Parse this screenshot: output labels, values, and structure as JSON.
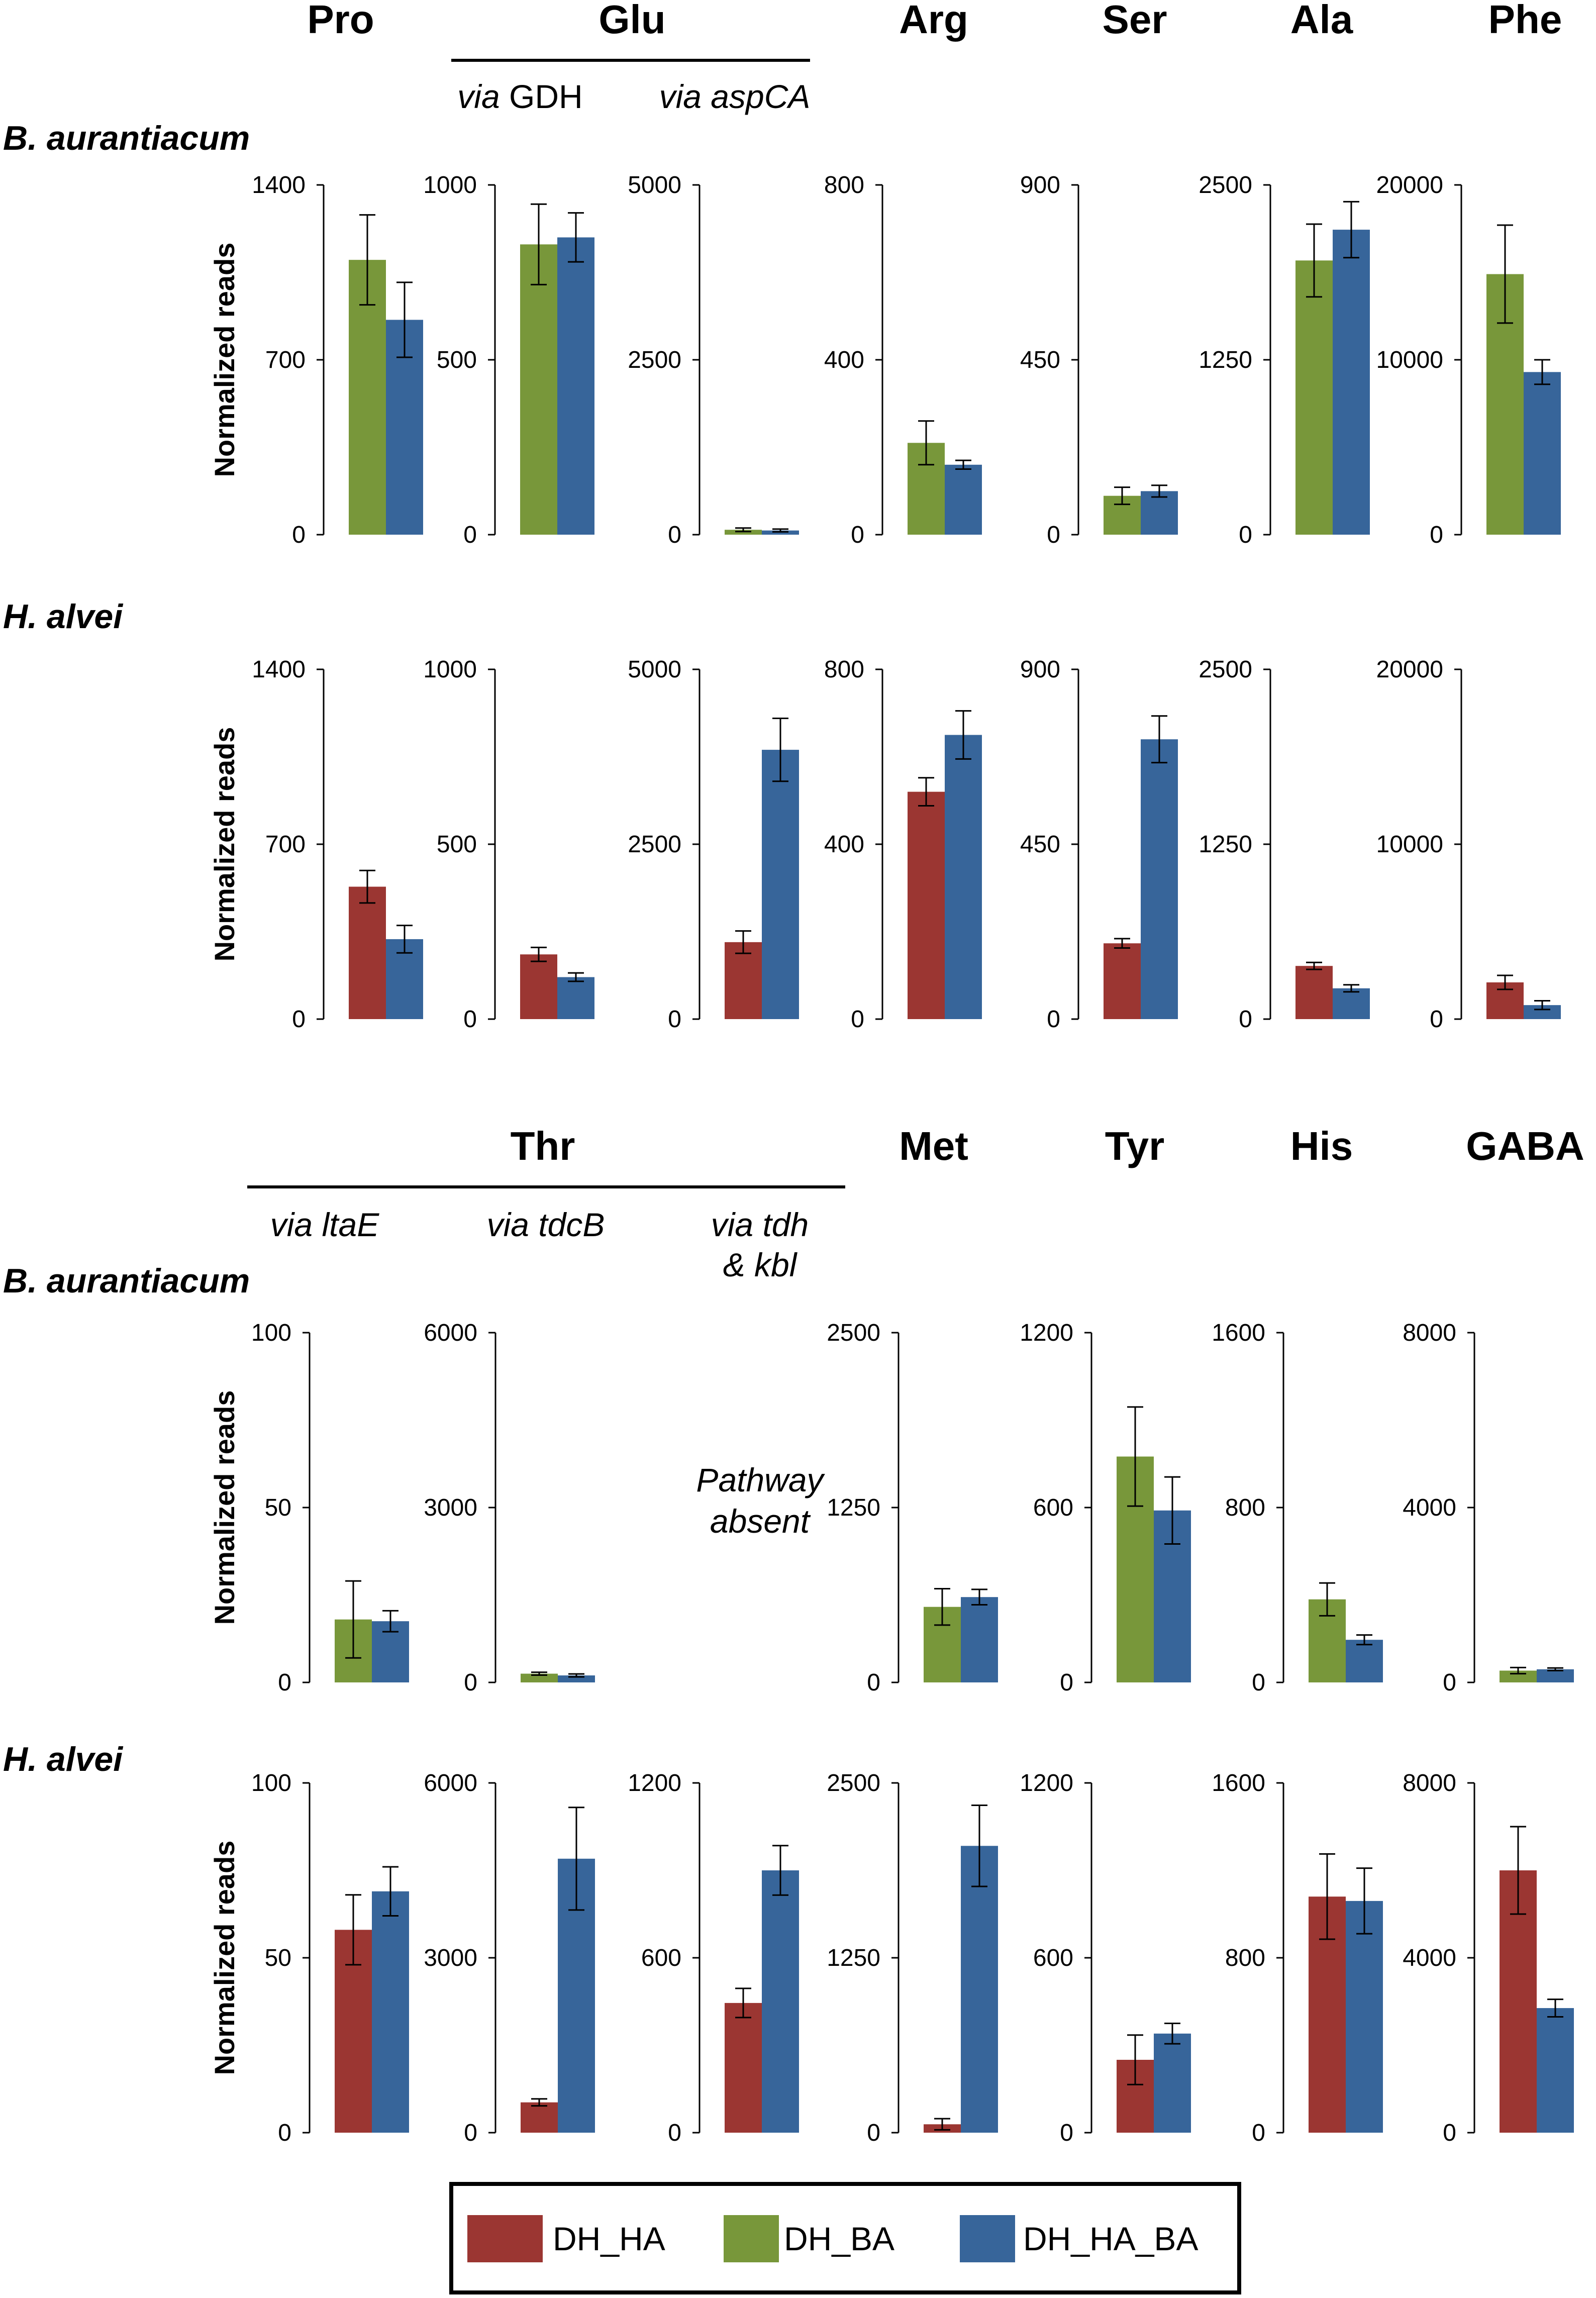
{
  "colors": {
    "DH_HA": "#9b3632",
    "DH_BA": "#78973a",
    "DH_HA_BA": "#37659a"
  },
  "legend": {
    "items": [
      {
        "key": "DH_HA",
        "label": "DH_HA"
      },
      {
        "key": "DH_BA",
        "label": "DH_BA"
      },
      {
        "key": "DH_HA_BA",
        "label": "DH_HA_BA"
      }
    ]
  },
  "top_section": {
    "headers": [
      "Pro",
      "Glu",
      "Arg",
      "Ser",
      "Ala",
      "Phe"
    ],
    "glu_subheaders": [
      {
        "via": "via",
        "gene": "GDH"
      },
      {
        "via": "via",
        "gene": "aspCA"
      }
    ]
  },
  "bottom_section": {
    "headers": [
      "Thr",
      "Met",
      "Tyr",
      "His",
      "GABA"
    ],
    "thr_subheaders": [
      {
        "via": "via",
        "gene": "ltaE"
      },
      {
        "via": "via",
        "gene": "tdcB"
      },
      {
        "via": "via",
        "gene": "tdh",
        "line2": "& kbl"
      }
    ],
    "pathway_absent": [
      "Pathway",
      "absent"
    ]
  },
  "species": [
    "B. aurantiacum",
    "H. alvei"
  ],
  "ylabel": "Normalized reads",
  "chart_data": [
    {
      "type": "bar",
      "title": "Pro",
      "subtitle": "",
      "row": "B. aurantiacum",
      "ylabel": "Normalized reads",
      "ylim": [
        0,
        1400
      ],
      "yticks": [
        "0",
        "700",
        "1400"
      ],
      "series": [
        {
          "name": "DH_BA",
          "values": [
            1100
          ],
          "errors": [
            180
          ]
        },
        {
          "name": "DH_HA_BA",
          "values": [
            860
          ],
          "errors": [
            150
          ]
        }
      ]
    },
    {
      "type": "bar",
      "title": "Glu",
      "subtitle": "via GDH",
      "row": "B. aurantiacum",
      "ylabel": "",
      "ylim": [
        0,
        1000
      ],
      "yticks": [
        "0",
        "500",
        "1000"
      ],
      "series": [
        {
          "name": "DH_BA",
          "values": [
            830
          ],
          "errors": [
            115
          ]
        },
        {
          "name": "DH_HA_BA",
          "values": [
            850
          ],
          "errors": [
            70
          ]
        }
      ]
    },
    {
      "type": "bar",
      "title": "Glu",
      "subtitle": "via aspCA",
      "row": "B. aurantiacum",
      "ylabel": "",
      "ylim": [
        0,
        5000
      ],
      "yticks": [
        "0",
        "2500",
        "5000"
      ],
      "series": [
        {
          "name": "DH_BA",
          "values": [
            70
          ],
          "errors": [
            25
          ]
        },
        {
          "name": "DH_HA_BA",
          "values": [
            60
          ],
          "errors": [
            20
          ]
        }
      ]
    },
    {
      "type": "bar",
      "title": "Arg",
      "subtitle": "",
      "row": "B. aurantiacum",
      "ylabel": "",
      "ylim": [
        0,
        800
      ],
      "yticks": [
        "0",
        "400",
        "800"
      ],
      "series": [
        {
          "name": "DH_BA",
          "values": [
            210
          ],
          "errors": [
            50
          ]
        },
        {
          "name": "DH_HA_BA",
          "values": [
            160
          ],
          "errors": [
            10
          ]
        }
      ]
    },
    {
      "type": "bar",
      "title": "Ser",
      "subtitle": "",
      "row": "B. aurantiacum",
      "ylabel": "",
      "ylim": [
        0,
        900
      ],
      "yticks": [
        "0",
        "450",
        "900"
      ],
      "series": [
        {
          "name": "DH_BA",
          "values": [
            100
          ],
          "errors": [
            22
          ]
        },
        {
          "name": "DH_HA_BA",
          "values": [
            112
          ],
          "errors": [
            15
          ]
        }
      ]
    },
    {
      "type": "bar",
      "title": "Ala",
      "subtitle": "",
      "row": "B. aurantiacum",
      "ylabel": "",
      "ylim": [
        0,
        2500
      ],
      "yticks": [
        "0",
        "1250",
        "2500"
      ],
      "series": [
        {
          "name": "DH_BA",
          "values": [
            1960
          ],
          "errors": [
            260
          ]
        },
        {
          "name": "DH_HA_BA",
          "values": [
            2180
          ],
          "errors": [
            200
          ]
        }
      ]
    },
    {
      "type": "bar",
      "title": "Phe",
      "subtitle": "",
      "row": "B. aurantiacum",
      "ylabel": "",
      "ylim": [
        0,
        20000
      ],
      "yticks": [
        "0",
        "10000",
        "20000"
      ],
      "series": [
        {
          "name": "DH_BA",
          "values": [
            14900
          ],
          "errors": [
            2800
          ]
        },
        {
          "name": "DH_HA_BA",
          "values": [
            9300
          ],
          "errors": [
            700
          ]
        }
      ]
    },
    {
      "type": "bar",
      "title": "Pro",
      "subtitle": "",
      "row": "H. alvei",
      "ylabel": "Normalized reads",
      "ylim": [
        0,
        1400
      ],
      "yticks": [
        "0",
        "700",
        "1400"
      ],
      "series": [
        {
          "name": "DH_HA",
          "values": [
            530
          ],
          "errors": [
            65
          ]
        },
        {
          "name": "DH_HA_BA",
          "values": [
            320
          ],
          "errors": [
            55
          ]
        }
      ]
    },
    {
      "type": "bar",
      "title": "Glu",
      "subtitle": "via GDH",
      "row": "H. alvei",
      "ylabel": "",
      "ylim": [
        0,
        1000
      ],
      "yticks": [
        "0",
        "500",
        "1000"
      ],
      "series": [
        {
          "name": "DH_HA",
          "values": [
            185
          ],
          "errors": [
            20
          ]
        },
        {
          "name": "DH_HA_BA",
          "values": [
            120
          ],
          "errors": [
            12
          ]
        }
      ]
    },
    {
      "type": "bar",
      "title": "Glu",
      "subtitle": "via aspCA",
      "row": "H. alvei",
      "ylabel": "",
      "ylim": [
        0,
        5000
      ],
      "yticks": [
        "0",
        "2500",
        "5000"
      ],
      "series": [
        {
          "name": "DH_HA",
          "values": [
            1100
          ],
          "errors": [
            160
          ]
        },
        {
          "name": "DH_HA_BA",
          "values": [
            3850
          ],
          "errors": [
            450
          ]
        }
      ]
    },
    {
      "type": "bar",
      "title": "Arg",
      "subtitle": "",
      "row": "H. alvei",
      "ylabel": "",
      "ylim": [
        0,
        800
      ],
      "yticks": [
        "0",
        "400",
        "800"
      ],
      "series": [
        {
          "name": "DH_HA",
          "values": [
            520
          ],
          "errors": [
            32
          ]
        },
        {
          "name": "DH_HA_BA",
          "values": [
            650
          ],
          "errors": [
            55
          ]
        }
      ]
    },
    {
      "type": "bar",
      "title": "Ser",
      "subtitle": "",
      "row": "H. alvei",
      "ylabel": "",
      "ylim": [
        0,
        900
      ],
      "yticks": [
        "0",
        "450",
        "900"
      ],
      "series": [
        {
          "name": "DH_HA",
          "values": [
            195
          ],
          "errors": [
            12
          ]
        },
        {
          "name": "DH_HA_BA",
          "values": [
            720
          ],
          "errors": [
            60
          ]
        }
      ]
    },
    {
      "type": "bar",
      "title": "Ala",
      "subtitle": "",
      "row": "H. alvei",
      "ylabel": "",
      "ylim": [
        0,
        2500
      ],
      "yticks": [
        "0",
        "1250",
        "2500"
      ],
      "series": [
        {
          "name": "DH_HA",
          "values": [
            380
          ],
          "errors": [
            25
          ]
        },
        {
          "name": "DH_HA_BA",
          "values": [
            220
          ],
          "errors": [
            25
          ]
        }
      ]
    },
    {
      "type": "bar",
      "title": "Phe",
      "subtitle": "",
      "row": "H. alvei",
      "ylabel": "",
      "ylim": [
        0,
        20000
      ],
      "yticks": [
        "0",
        "10000",
        "20000"
      ],
      "series": [
        {
          "name": "DH_HA",
          "values": [
            2100
          ],
          "errors": [
            400
          ]
        },
        {
          "name": "DH_HA_BA",
          "values": [
            800
          ],
          "errors": [
            250
          ]
        }
      ]
    },
    {
      "type": "bar",
      "title": "Thr",
      "subtitle": "via ltaE",
      "row": "B. aurantiacum",
      "ylabel": "Normalized reads",
      "ylim": [
        0,
        100
      ],
      "yticks": [
        "0",
        "50",
        "100"
      ],
      "series": [
        {
          "name": "DH_BA",
          "values": [
            18
          ],
          "errors": [
            11
          ]
        },
        {
          "name": "DH_HA_BA",
          "values": [
            17.5
          ],
          "errors": [
            3
          ]
        }
      ]
    },
    {
      "type": "bar",
      "title": "Thr",
      "subtitle": "via tdcB",
      "row": "B. aurantiacum",
      "ylabel": "",
      "ylim": [
        0,
        6000
      ],
      "yticks": [
        "0",
        "3000",
        "6000"
      ],
      "series": [
        {
          "name": "DH_BA",
          "values": [
            150
          ],
          "errors": [
            25
          ]
        },
        {
          "name": "DH_HA_BA",
          "values": [
            120
          ],
          "errors": [
            25
          ]
        }
      ]
    },
    {
      "type": "bar",
      "title": "Met",
      "subtitle": "",
      "row": "B. aurantiacum",
      "ylabel": "",
      "ylim": [
        0,
        2500
      ],
      "yticks": [
        "0",
        "1250",
        "2500"
      ],
      "series": [
        {
          "name": "DH_BA",
          "values": [
            540
          ],
          "errors": [
            130
          ]
        },
        {
          "name": "DH_HA_BA",
          "values": [
            610
          ],
          "errors": [
            55
          ]
        }
      ]
    },
    {
      "type": "bar",
      "title": "Tyr",
      "subtitle": "",
      "row": "B. aurantiacum",
      "ylabel": "",
      "ylim": [
        0,
        1200
      ],
      "yticks": [
        "0",
        "600",
        "1200"
      ],
      "series": [
        {
          "name": "DH_BA",
          "values": [
            775
          ],
          "errors": [
            170
          ]
        },
        {
          "name": "DH_HA_BA",
          "values": [
            590
          ],
          "errors": [
            115
          ]
        }
      ]
    },
    {
      "type": "bar",
      "title": "His",
      "subtitle": "",
      "row": "B. aurantiacum",
      "ylabel": "",
      "ylim": [
        0,
        1600
      ],
      "yticks": [
        "0",
        "800",
        "1600"
      ],
      "series": [
        {
          "name": "DH_BA",
          "values": [
            380
          ],
          "errors": [
            75
          ]
        },
        {
          "name": "DH_HA_BA",
          "values": [
            195
          ],
          "errors": [
            22
          ]
        }
      ]
    },
    {
      "type": "bar",
      "title": "GABA",
      "subtitle": "",
      "row": "B. aurantiacum",
      "ylabel": "",
      "ylim": [
        0,
        8000
      ],
      "yticks": [
        "0",
        "4000",
        "8000"
      ],
      "series": [
        {
          "name": "DH_BA",
          "values": [
            270
          ],
          "errors": [
            70
          ]
        },
        {
          "name": "DH_HA_BA",
          "values": [
            300
          ],
          "errors": [
            30
          ]
        }
      ]
    },
    {
      "type": "bar",
      "title": "Thr",
      "subtitle": "via ltaE",
      "row": "H. alvei",
      "ylabel": "Normalized reads",
      "ylim": [
        0,
        100
      ],
      "yticks": [
        "0",
        "50",
        "100"
      ],
      "series": [
        {
          "name": "DH_HA",
          "values": [
            58
          ],
          "errors": [
            10
          ]
        },
        {
          "name": "DH_HA_BA",
          "values": [
            69
          ],
          "errors": [
            7
          ]
        }
      ]
    },
    {
      "type": "bar",
      "title": "Thr",
      "subtitle": "via tdcB",
      "row": "H. alvei",
      "ylabel": "",
      "ylim": [
        0,
        6000
      ],
      "yticks": [
        "0",
        "3000",
        "6000"
      ],
      "series": [
        {
          "name": "DH_HA",
          "values": [
            520
          ],
          "errors": [
            60
          ]
        },
        {
          "name": "DH_HA_BA",
          "values": [
            4700
          ],
          "errors": [
            880
          ]
        }
      ]
    },
    {
      "type": "bar",
      "title": "Thr",
      "subtitle": "via tdh & kbl",
      "row": "H. alvei",
      "ylabel": "",
      "ylim": [
        0,
        1200
      ],
      "yticks": [
        "0",
        "600",
        "1200"
      ],
      "series": [
        {
          "name": "DH_HA",
          "values": [
            445
          ],
          "errors": [
            50
          ]
        },
        {
          "name": "DH_HA_BA",
          "values": [
            900
          ],
          "errors": [
            85
          ]
        }
      ]
    },
    {
      "type": "bar",
      "title": "Met",
      "subtitle": "",
      "row": "H. alvei",
      "ylabel": "",
      "ylim": [
        0,
        2500
      ],
      "yticks": [
        "0",
        "1250",
        "2500"
      ],
      "series": [
        {
          "name": "DH_HA",
          "values": [
            60
          ],
          "errors": [
            40
          ]
        },
        {
          "name": "DH_HA_BA",
          "values": [
            2050
          ],
          "errors": [
            290
          ]
        }
      ]
    },
    {
      "type": "bar",
      "title": "Tyr",
      "subtitle": "",
      "row": "H. alvei",
      "ylabel": "",
      "ylim": [
        0,
        1200
      ],
      "yticks": [
        "0",
        "600",
        "1200"
      ],
      "series": [
        {
          "name": "DH_HA",
          "values": [
            250
          ],
          "errors": [
            85
          ]
        },
        {
          "name": "DH_HA_BA",
          "values": [
            340
          ],
          "errors": [
            35
          ]
        }
      ]
    },
    {
      "type": "bar",
      "title": "His",
      "subtitle": "",
      "row": "H. alvei",
      "ylabel": "",
      "ylim": [
        0,
        1600
      ],
      "yticks": [
        "0",
        "800",
        "1600"
      ],
      "series": [
        {
          "name": "DH_HA",
          "values": [
            1080
          ],
          "errors": [
            195
          ]
        },
        {
          "name": "DH_HA_BA",
          "values": [
            1060
          ],
          "errors": [
            150
          ]
        }
      ]
    },
    {
      "type": "bar",
      "title": "GABA",
      "subtitle": "",
      "row": "H. alvei",
      "ylabel": "",
      "ylim": [
        0,
        8000
      ],
      "yticks": [
        "0",
        "4000",
        "8000"
      ],
      "series": [
        {
          "name": "DH_HA",
          "values": [
            6000
          ],
          "errors": [
            1000
          ]
        },
        {
          "name": "DH_HA_BA",
          "values": [
            2850
          ],
          "errors": [
            200
          ]
        }
      ]
    }
  ]
}
